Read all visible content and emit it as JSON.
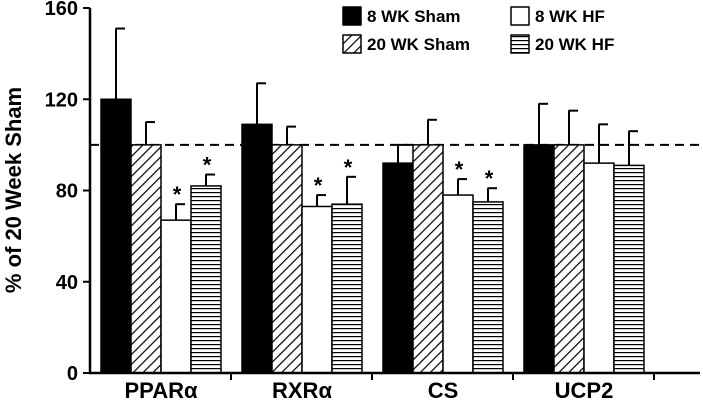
{
  "chart_data": {
    "type": "bar",
    "title": "",
    "xlabel": "",
    "ylabel": "% of 20 Week Sham",
    "ylim": [
      0,
      160
    ],
    "yticks": [
      0,
      40,
      80,
      120,
      160
    ],
    "categories": [
      "PPARα",
      "RXRα",
      "CS",
      "UCP2"
    ],
    "reference_line": {
      "y": 100,
      "style": "dashed"
    },
    "legend_position": "top-right",
    "series": [
      {
        "name": "8 WK Sham",
        "pattern": "solid-black",
        "values": [
          120,
          109,
          92,
          100
        ],
        "errors": [
          31,
          18,
          8,
          18
        ],
        "significant": [
          false,
          false,
          false,
          false
        ]
      },
      {
        "name": "20 WK Sham",
        "pattern": "diagonal-hatch",
        "values": [
          100,
          100,
          100,
          100
        ],
        "errors": [
          10,
          8,
          11,
          15
        ],
        "significant": [
          false,
          false,
          false,
          false
        ]
      },
      {
        "name": "8 WK HF",
        "pattern": "white",
        "values": [
          67,
          73,
          78,
          92
        ],
        "errors": [
          7,
          5,
          7,
          17
        ],
        "significant": [
          true,
          true,
          true,
          false
        ]
      },
      {
        "name": "20 WK HF",
        "pattern": "horizontal-lines",
        "values": [
          82,
          74,
          75,
          91
        ],
        "errors": [
          5,
          12,
          6,
          15
        ],
        "significant": [
          true,
          true,
          true,
          false
        ]
      }
    ],
    "significance_marker": "*"
  }
}
